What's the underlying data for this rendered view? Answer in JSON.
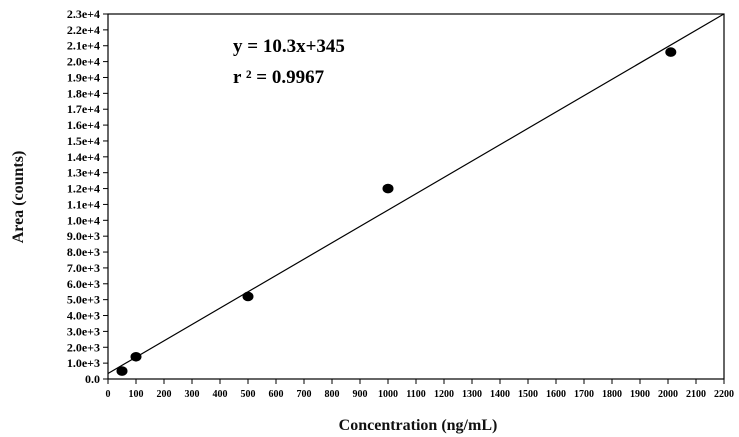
{
  "chart_data": {
    "type": "scatter",
    "xlabel": "Concentration (ng/mL)",
    "ylabel": "Area (counts)",
    "xlim": [
      0,
      2200
    ],
    "ylim": [
      0,
      23000
    ],
    "x_ticks": [
      "0",
      "100",
      "200",
      "300",
      "400",
      "500",
      "600",
      "700",
      "800",
      "900",
      "1000",
      "1100",
      "1200",
      "1300",
      "1400",
      "1500",
      "1600",
      "1700",
      "1800",
      "1900",
      "2000",
      "2100",
      "2200"
    ],
    "y_ticks": [
      "0.0",
      "1.0e+3",
      "2.0e+3",
      "3.0e+3",
      "4.0e+3",
      "5.0e+3",
      "6.0e+3",
      "7.0e+3",
      "8.0e+3",
      "9.0e+3",
      "1.0e+4",
      "1.1e+4",
      "1.2e+4",
      "1.3e+4",
      "1.4e+4",
      "1.5e+4",
      "1.6e+4",
      "1.7e+4",
      "1.8e+4",
      "1.9e+4",
      "2.0e+4",
      "2.1e+4",
      "2.2e+4",
      "2.3e+4"
    ],
    "grid": false,
    "points": [
      {
        "x": 50,
        "y": 500
      },
      {
        "x": 100,
        "y": 1400
      },
      {
        "x": 500,
        "y": 5200
      },
      {
        "x": 1000,
        "y": 12000
      },
      {
        "x": 2010,
        "y": 20600
      }
    ],
    "fit": {
      "slope": 10.3,
      "intercept": 345
    },
    "annotations": [
      "y = 10.3x+345",
      "r ² = 0.9967"
    ],
    "colors": {
      "marker": "#000000",
      "line": "#000000",
      "axes": "#000000"
    }
  }
}
